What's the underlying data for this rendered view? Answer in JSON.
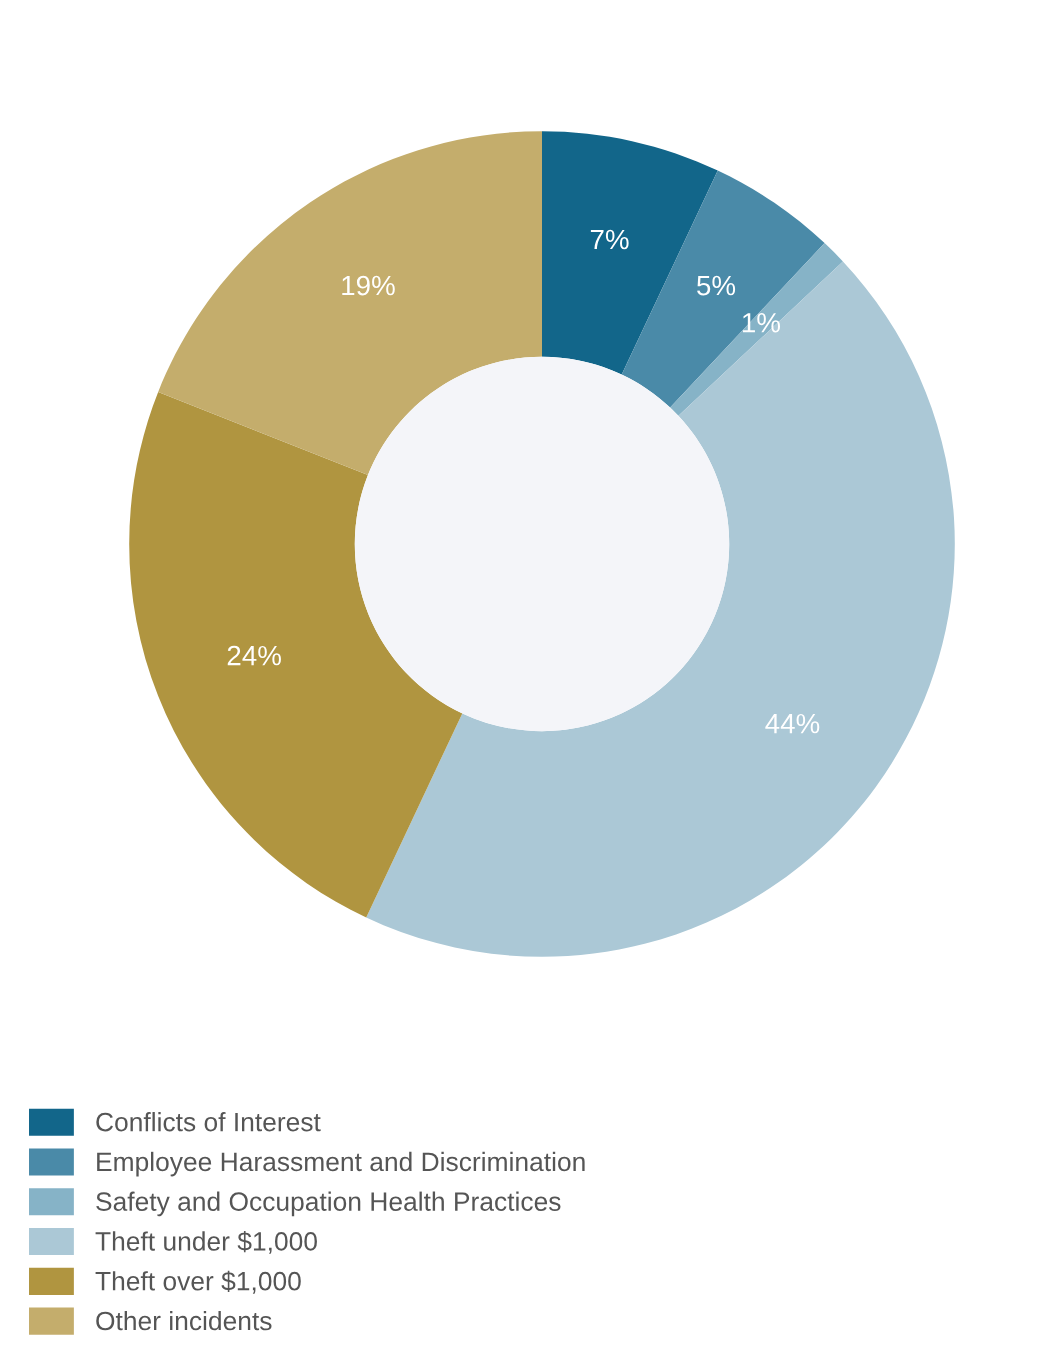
{
  "chart_data": {
    "type": "donut",
    "categories": [
      "Conflicts of Interest",
      "Employee Harassment and Discrimination",
      "Safety and Occupation Health Practices",
      "Theft under $1,000",
      "Theft over $1,000",
      "Other incidents"
    ],
    "values": [
      7,
      5,
      1,
      44,
      24,
      19
    ],
    "colors": [
      "#12668a",
      "#4a8aa8",
      "#86b3c7",
      "#abc8d6",
      "#b09540",
      "#c4ad6c"
    ],
    "value_labels": [
      "7%",
      "5%",
      "1%",
      "44%",
      "24%",
      "19%"
    ],
    "legend": "bottom left"
  }
}
